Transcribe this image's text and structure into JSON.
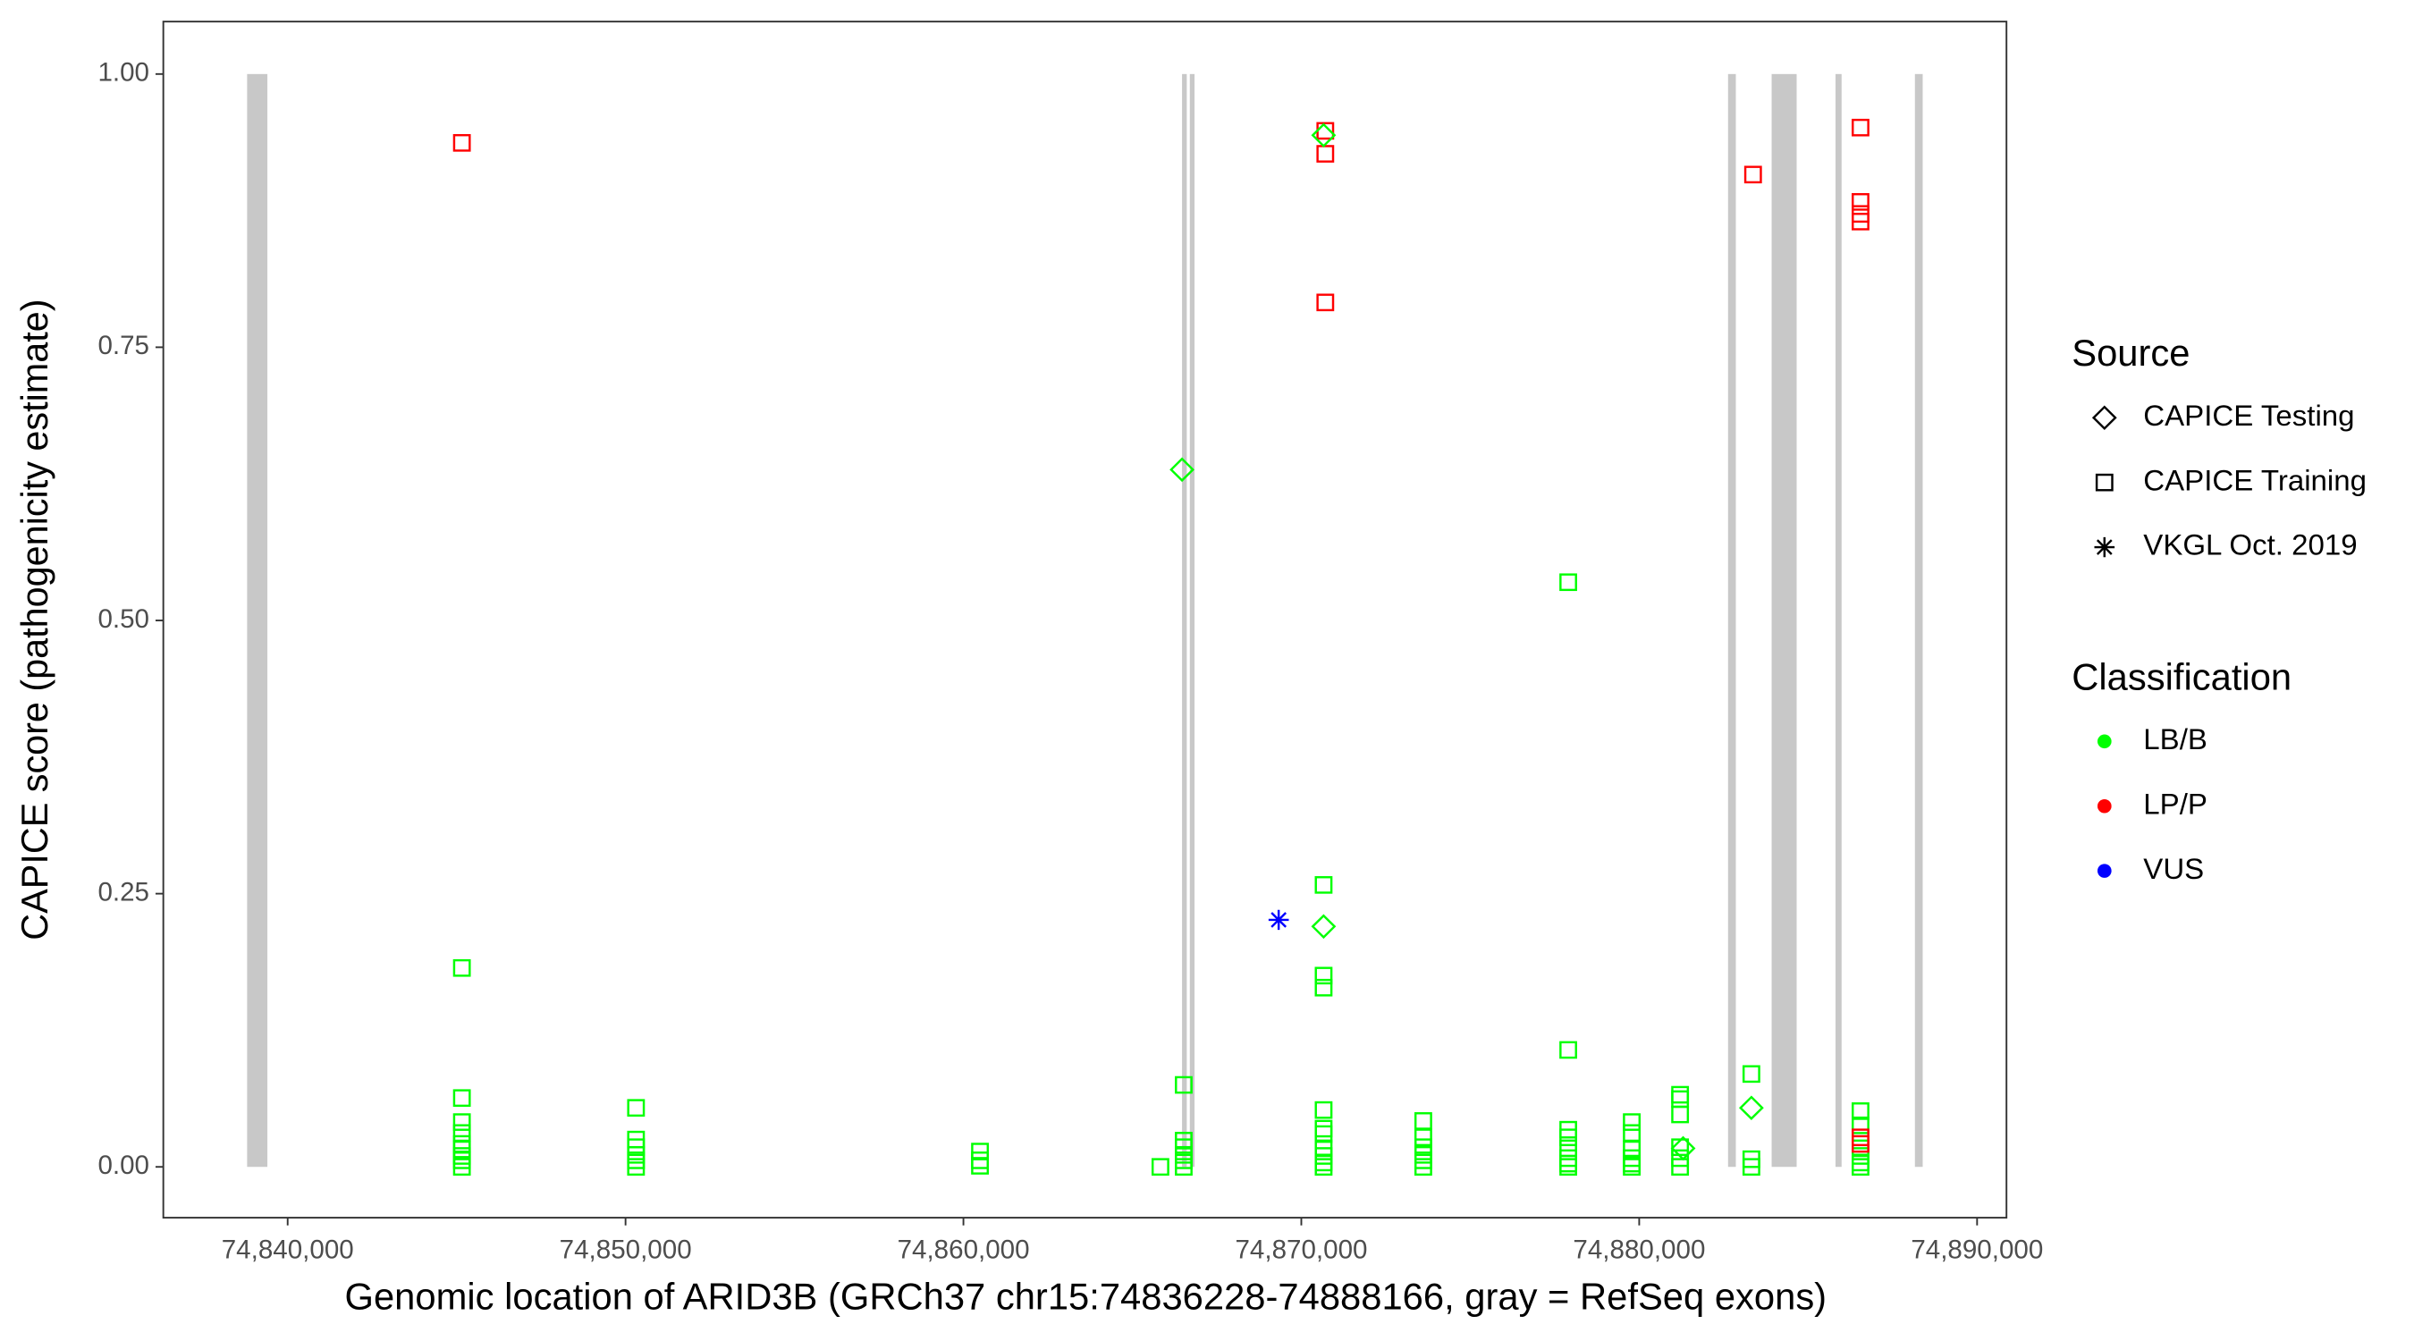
{
  "chart_data": {
    "type": "scatter",
    "x_label": "Genomic location of ARID3B (GRCh37 chr15:74836228-74888166, gray = RefSeq exons)",
    "y_label": "CAPICE score (pathogenicity estimate)",
    "xlim": [
      74836320,
      74890870
    ],
    "ylim": [
      -0.0465,
      1.048
    ],
    "xticks": [
      {
        "value": 74840000,
        "label": "74,840,000"
      },
      {
        "value": 74850000,
        "label": "74,850,000"
      },
      {
        "value": 74860000,
        "label": "74,860,000"
      },
      {
        "value": 74870000,
        "label": "74,870,000"
      },
      {
        "value": 74880000,
        "label": "74,880,000"
      },
      {
        "value": 74890000,
        "label": "74,890,000"
      }
    ],
    "yticks": [
      {
        "value": 0,
        "label": "0.00"
      },
      {
        "value": 0.25,
        "label": "0.25"
      },
      {
        "value": 0.5,
        "label": "0.50"
      },
      {
        "value": 0.75,
        "label": "0.75"
      },
      {
        "value": 1,
        "label": "1.00"
      }
    ],
    "exon_color": "#c8c8c8",
    "exons": [
      [
        74838800,
        74839400
      ],
      [
        74866470,
        74866610
      ],
      [
        74866700,
        74866840
      ],
      [
        74882630,
        74882860
      ],
      [
        74883920,
        74884660
      ],
      [
        74885810,
        74885990
      ],
      [
        74888160,
        74888390
      ]
    ],
    "shape_legend": {
      "title": "Source",
      "entries": [
        {
          "name": "CAPICE Testing",
          "shape": "diamond"
        },
        {
          "name": "CAPICE Training",
          "shape": "square"
        },
        {
          "name": "VKGL Oct. 2019",
          "shape": "asterisk"
        }
      ]
    },
    "color_legend": {
      "title": "Classification",
      "entries": [
        {
          "name": "LB/B",
          "color": "#00ff00"
        },
        {
          "name": "LP/P",
          "color": "#ff0000"
        },
        {
          "name": "VUS",
          "color": "#0000ff"
        }
      ]
    },
    "series": [
      {
        "shape": "square",
        "color": "#00ff00",
        "x": [
          74845157,
          74845157,
          74845157,
          74845157,
          74845157,
          74845157,
          74845157,
          74845157,
          74845157,
          74850310,
          74850310,
          74850310,
          74850310,
          74850310,
          74850310,
          74860490,
          74860490,
          74860490,
          74865830,
          74866520,
          74866520,
          74866520,
          74866520,
          74866520,
          74866520,
          74870660,
          74870660,
          74870660,
          74870660,
          74870660,
          74870660,
          74870660,
          74870660,
          74870660,
          74870660,
          74873610,
          74873610,
          74873610,
          74873610,
          74873610,
          74873610,
          74877900,
          74877900,
          74877900,
          74877900,
          74877900,
          74877900,
          74877900,
          74877900,
          74879780,
          74879780,
          74879780,
          74879780,
          74879780,
          74879780,
          74881210,
          74881210,
          74881210,
          74881210,
          74881210,
          74881210,
          74883320,
          74883320,
          74883320,
          74886550,
          74886550,
          74886550,
          74886550,
          74886550,
          74886550
        ],
        "values": [
          0.182,
          0.063,
          0.041,
          0.031,
          0.021,
          0.016,
          0.01,
          0.006,
          0,
          0.054,
          0.025,
          0.018,
          0.011,
          0.006,
          0,
          0.014,
          0.006,
          0.001,
          0,
          0.075,
          0.024,
          0.018,
          0.011,
          0.006,
          0,
          0.258,
          0.175,
          0.164,
          0.052,
          0.035,
          0.03,
          0.017,
          0.01,
          0.004,
          0,
          0.042,
          0.027,
          0.018,
          0.011,
          0.006,
          0,
          0.535,
          0.107,
          0.034,
          0.027,
          0.017,
          0.008,
          0.003,
          0,
          0.041,
          0.031,
          0.016,
          0.008,
          0.003,
          0,
          0.066,
          0.062,
          0.048,
          0.018,
          0.008,
          0,
          0.085,
          0.007,
          0,
          0.051,
          0.038,
          0.017,
          0.01,
          0.004,
          0
        ]
      },
      {
        "shape": "square",
        "color": "#ff0000",
        "x": [
          74845157,
          74870710,
          74870710,
          74870710,
          74883370,
          74886550,
          74886550,
          74886550,
          74886550,
          74886550,
          74886550
        ],
        "values": [
          0.937,
          0.948,
          0.927,
          0.791,
          0.908,
          0.951,
          0.883,
          0.872,
          0.865,
          0.027,
          0.021
        ]
      },
      {
        "shape": "diamond",
        "color": "#00ff00",
        "x": [
          74870660,
          74866470,
          74870660,
          74883320,
          74881300
        ],
        "values": [
          0.944,
          0.638,
          0.22,
          0.054,
          0.017
        ]
      },
      {
        "shape": "asterisk",
        "color": "#0000ff",
        "x": [
          74869330
        ],
        "values": [
          0.226
        ]
      }
    ]
  }
}
